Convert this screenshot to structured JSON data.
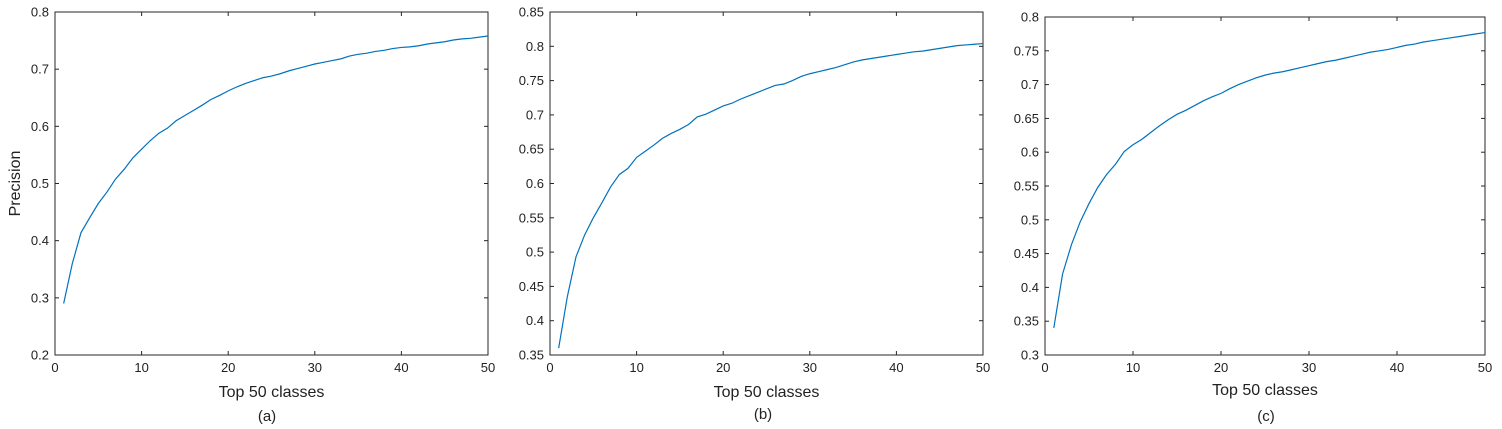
{
  "line_color": "#0072BD",
  "chart_data": [
    {
      "type": "line",
      "title": "",
      "xlabel": "Top 50 classes",
      "ylabel": "Precision",
      "caption": "(a)",
      "xlim": [
        0,
        50
      ],
      "ylim": [
        0.2,
        0.8
      ],
      "xticks": [
        0,
        10,
        20,
        30,
        40,
        50
      ],
      "yticks": [
        0.2,
        0.3,
        0.4,
        0.5,
        0.6,
        0.7,
        0.8
      ],
      "xtick_labels": [
        "0",
        "10",
        "20",
        "30",
        "40",
        "50"
      ],
      "ytick_labels": [
        "0.2",
        "0.3",
        "0.4",
        "0.5",
        "0.6",
        "0.7",
        "0.8"
      ],
      "grid": false,
      "series": [
        {
          "x": [
            1,
            2,
            3,
            4,
            5,
            6,
            7,
            8,
            9,
            10,
            11,
            12,
            13,
            14,
            15,
            16,
            17,
            18,
            19,
            20,
            21,
            22,
            23,
            24,
            25,
            26,
            27,
            28,
            29,
            30,
            31,
            32,
            33,
            34,
            35,
            36,
            37,
            38,
            39,
            40,
            41,
            42,
            43,
            44,
            45,
            46,
            47,
            48,
            49,
            50
          ],
          "values": [
            0.29,
            0.36,
            0.414,
            0.44,
            0.465,
            0.485,
            0.508,
            0.525,
            0.545,
            0.56,
            0.575,
            0.588,
            0.597,
            0.61,
            0.619,
            0.628,
            0.637,
            0.647,
            0.654,
            0.662,
            0.669,
            0.675,
            0.68,
            0.685,
            0.688,
            0.692,
            0.697,
            0.701,
            0.705,
            0.709,
            0.712,
            0.715,
            0.718,
            0.723,
            0.726,
            0.728,
            0.731,
            0.733,
            0.736,
            0.738,
            0.739,
            0.741,
            0.744,
            0.746,
            0.748,
            0.751,
            0.753,
            0.754,
            0.756,
            0.758
          ]
        }
      ]
    },
    {
      "type": "line",
      "title": "",
      "xlabel": "Top 50 classes",
      "ylabel": "",
      "caption": "(b)",
      "xlim": [
        0,
        50
      ],
      "ylim": [
        0.35,
        0.85
      ],
      "xticks": [
        0,
        10,
        20,
        30,
        40,
        50
      ],
      "yticks": [
        0.35,
        0.4,
        0.45,
        0.5,
        0.55,
        0.6,
        0.65,
        0.7,
        0.75,
        0.8,
        0.85
      ],
      "xtick_labels": [
        "0",
        "10",
        "20",
        "30",
        "40",
        "50"
      ],
      "ytick_labels": [
        "0.35",
        "0.4",
        "0.45",
        "0.5",
        "0.55",
        "0.6",
        "0.65",
        "0.7",
        "0.75",
        "0.8",
        "0.85"
      ],
      "grid": false,
      "series": [
        {
          "x": [
            1,
            2,
            3,
            4,
            5,
            6,
            7,
            8,
            9,
            10,
            11,
            12,
            13,
            14,
            15,
            16,
            17,
            18,
            19,
            20,
            21,
            22,
            23,
            24,
            25,
            26,
            27,
            28,
            29,
            30,
            31,
            32,
            33,
            34,
            35,
            36,
            37,
            38,
            39,
            40,
            41,
            42,
            43,
            44,
            45,
            46,
            47,
            48,
            49,
            50
          ],
          "values": [
            0.36,
            0.435,
            0.493,
            0.525,
            0.55,
            0.572,
            0.595,
            0.613,
            0.622,
            0.638,
            0.647,
            0.656,
            0.666,
            0.673,
            0.679,
            0.686,
            0.697,
            0.701,
            0.707,
            0.713,
            0.717,
            0.723,
            0.728,
            0.733,
            0.738,
            0.743,
            0.745,
            0.75,
            0.756,
            0.76,
            0.763,
            0.766,
            0.769,
            0.773,
            0.777,
            0.78,
            0.782,
            0.784,
            0.786,
            0.788,
            0.79,
            0.792,
            0.793,
            0.795,
            0.797,
            0.799,
            0.801,
            0.802,
            0.803,
            0.804
          ]
        }
      ]
    },
    {
      "type": "line",
      "title": "",
      "xlabel": "Top 50 classes",
      "ylabel": "",
      "caption": "(c)",
      "xlim": [
        0,
        50
      ],
      "ylim": [
        0.3,
        0.8
      ],
      "xticks": [
        0,
        10,
        20,
        30,
        40,
        50
      ],
      "yticks": [
        0.3,
        0.35,
        0.4,
        0.45,
        0.5,
        0.55,
        0.6,
        0.65,
        0.7,
        0.75,
        0.8
      ],
      "xtick_labels": [
        "0",
        "10",
        "20",
        "30",
        "40",
        "50"
      ],
      "ytick_labels": [
        "0.3",
        "0.35",
        "0.4",
        "0.45",
        "0.5",
        "0.55",
        "0.6",
        "0.65",
        "0.7",
        "0.75",
        "0.8"
      ],
      "grid": false,
      "series": [
        {
          "x": [
            1,
            2,
            3,
            4,
            5,
            6,
            7,
            8,
            9,
            10,
            11,
            12,
            13,
            14,
            15,
            16,
            17,
            18,
            19,
            20,
            21,
            22,
            23,
            24,
            25,
            26,
            27,
            28,
            29,
            30,
            31,
            32,
            33,
            34,
            35,
            36,
            37,
            38,
            39,
            40,
            41,
            42,
            43,
            44,
            45,
            46,
            47,
            48,
            49,
            50
          ],
          "values": [
            0.34,
            0.42,
            0.463,
            0.497,
            0.524,
            0.548,
            0.567,
            0.582,
            0.601,
            0.611,
            0.619,
            0.629,
            0.639,
            0.648,
            0.656,
            0.662,
            0.669,
            0.676,
            0.682,
            0.687,
            0.694,
            0.7,
            0.705,
            0.71,
            0.714,
            0.717,
            0.719,
            0.722,
            0.725,
            0.728,
            0.731,
            0.734,
            0.736,
            0.739,
            0.742,
            0.745,
            0.748,
            0.75,
            0.752,
            0.755,
            0.758,
            0.76,
            0.763,
            0.765,
            0.767,
            0.769,
            0.771,
            0.773,
            0.775,
            0.777
          ]
        }
      ]
    }
  ]
}
